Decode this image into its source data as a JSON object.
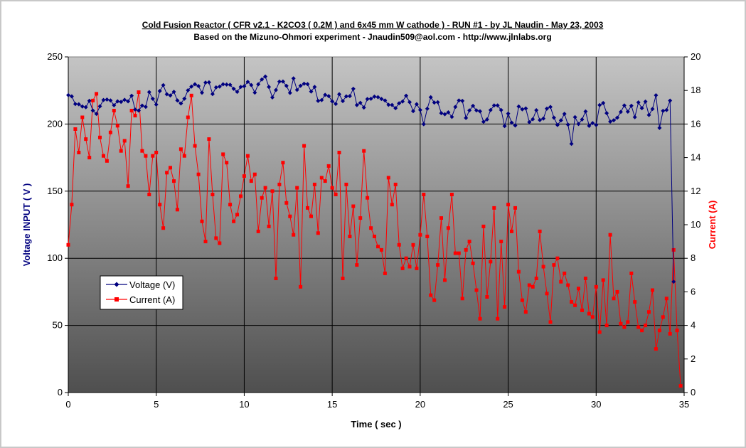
{
  "chart_data": {
    "type": "line",
    "title": "Cold Fusion Reactor ( CFR v2.1 - K2CO3 ( 0.2M ) and 6x45 mm W cathode ) - RUN #1 - by JL Naudin - May 23, 2003",
    "subtitle": "Based on the Mizuno-Ohmori experiment - Jnaudin509@aol.com - http://www.jlnlabs.org",
    "xlabel": "Time ( sec )",
    "ylabel_left": "Voltage INPUT ( V )",
    "ylabel_right": "Current (A)",
    "xlim": [
      0,
      35
    ],
    "ylim_left": [
      0,
      250
    ],
    "ylim_right": [
      0,
      20
    ],
    "x_ticks": [
      "0",
      "5",
      "10",
      "15",
      "20",
      "25",
      "30",
      "35"
    ],
    "y_left_ticks": [
      "0",
      "50",
      "100",
      "150",
      "200",
      "250"
    ],
    "y_right_ticks": [
      "0",
      "2",
      "4",
      "6",
      "8",
      "10",
      "12",
      "14",
      "16",
      "18",
      "20"
    ],
    "grid": true,
    "legend_position": "lower-left",
    "colors": {
      "voltage": "#00007f",
      "current": "#ff0000",
      "plot_bg_top": "#c0c0c0",
      "plot_bg_bottom": "#555555"
    },
    "series": [
      {
        "name": "Voltage (V)",
        "axis": "left",
        "marker": "diamond",
        "values": [
          221.5,
          220.6,
          214.9,
          214.7,
          213.1,
          212.5,
          217.3,
          210,
          207.6,
          213.2,
          217.9,
          218.2,
          217.6,
          214,
          216.9,
          216.5,
          218,
          216.9,
          221.1,
          210.8,
          210,
          213.7,
          212.8,
          223.8,
          218.8,
          214.5,
          224.6,
          228.9,
          222.2,
          221.3,
          224,
          217.6,
          215.3,
          218.9,
          225.1,
          227.9,
          229.6,
          228.3,
          223.3,
          230.9,
          231.1,
          222.3,
          227.3,
          227.9,
          229.6,
          229.4,
          229.2,
          226.2,
          224,
          227.6,
          228.1,
          231.4,
          229,
          223.4,
          229.6,
          233.2,
          235.4,
          227.6,
          219.8,
          225.3,
          231.6,
          231.7,
          228.4,
          223.2,
          234,
          225.4,
          228.5,
          230,
          229.7,
          224.2,
          227.6,
          217.2,
          217.8,
          221.7,
          220.8,
          216.9,
          215,
          222.2,
          217.1,
          220.6,
          220.8,
          226.2,
          214.1,
          215.8,
          212.3,
          218.6,
          218.8,
          220.4,
          220,
          218.7,
          217.6,
          214.3,
          214.2,
          211.8,
          215.4,
          216.8,
          221.1,
          216.3,
          209.6,
          214.8,
          210.5,
          199.9,
          211.4,
          219.9,
          216,
          216.2,
          208.1,
          207.3,
          208.7,
          205.3,
          212.7,
          217.6,
          217.2,
          204.5,
          210.1,
          213.5,
          210.1,
          209.5,
          201.7,
          203.4,
          210.4,
          213.9,
          213.8,
          210.4,
          198.5,
          207.8,
          201,
          198.9,
          213.1,
          210.9,
          211.6,
          201.4,
          203.6,
          210.3,
          202.9,
          204.1,
          211.5,
          212.7,
          204.7,
          199.3,
          202.7,
          207.6,
          199.5,
          185.2,
          205.1,
          200,
          203.4,
          209.4,
          198.6,
          200.7,
          199.3,
          214.1,
          215.6,
          208.1,
          201.8,
          202.8,
          204.7,
          209,
          213.9,
          209.2,
          213.6,
          205.1,
          216.1,
          211.8,
          216.7,
          206.7,
          211.2,
          221.4,
          197.1,
          209.8,
          210.4,
          217.4,
          82.6
        ],
        "x_start": 0.0,
        "x_step": 0.2
      },
      {
        "name": "Current (A)",
        "axis": "right",
        "marker": "square",
        "values": [
          8.8,
          11.2,
          15.7,
          14.3,
          16.4,
          15.1,
          14,
          17.4,
          17.8,
          15.2,
          14.1,
          13.8,
          15.5,
          16.8,
          15.9,
          14.4,
          15,
          12.3,
          16.8,
          16.5,
          17.9,
          14.4,
          14.1,
          11.8,
          14.1,
          14.3,
          11.2,
          9.8,
          13.1,
          13.4,
          12.6,
          10.9,
          14.5,
          14.1,
          16.4,
          17.7,
          14.7,
          13,
          10.2,
          9,
          15.1,
          11.8,
          9.2,
          8.9,
          14.2,
          13.7,
          11.2,
          10.2,
          10.6,
          11.7,
          12.9,
          14.1,
          12.6,
          13,
          9.6,
          11.6,
          12.2,
          9.9,
          12,
          6.8,
          12.4,
          13.7,
          11.3,
          10.5,
          9.4,
          12.2,
          6.3,
          14.7,
          11,
          10.5,
          12.4,
          9.5,
          12.8,
          12.6,
          13.5,
          12.2,
          11.8,
          14.3,
          6.8,
          12.4,
          9.3,
          11.1,
          7.6,
          10.4,
          14.4,
          11.6,
          9.8,
          9.3,
          8.7,
          8.5,
          7.1,
          12.8,
          11.2,
          12.4,
          8.8,
          7.4,
          8,
          7.5,
          8.8,
          7.4,
          9.4,
          11.8,
          9.3,
          5.8,
          5.5,
          7.6,
          10.4,
          6.7,
          9.8,
          11.8,
          8.3,
          8.3,
          5.6,
          8.5,
          9,
          7.7,
          6.1,
          4.4,
          9.9,
          5.7,
          7.8,
          11,
          4.4,
          9,
          5.1,
          11.2,
          9.6,
          11,
          7.2,
          5.5,
          4.8,
          6.4,
          6.3,
          6.8,
          9.6,
          7.5,
          5.9,
          4.2,
          7.6,
          8,
          6.6,
          7.1,
          6.4,
          5.4,
          5.2,
          6.2,
          4.9,
          6.8,
          4.7,
          4.5,
          6.3,
          3.6,
          6.7,
          4,
          9.4,
          5.6,
          6,
          4.1,
          3.9,
          4.2,
          7.1,
          5.4,
          3.9,
          3.7,
          4,
          4.8,
          6.1,
          2.6,
          3.7,
          4.5,
          5.6,
          3.5,
          8.5,
          3.7,
          0.4
        ],
        "x_start": 0.0,
        "x_step": 0.2
      }
    ]
  }
}
